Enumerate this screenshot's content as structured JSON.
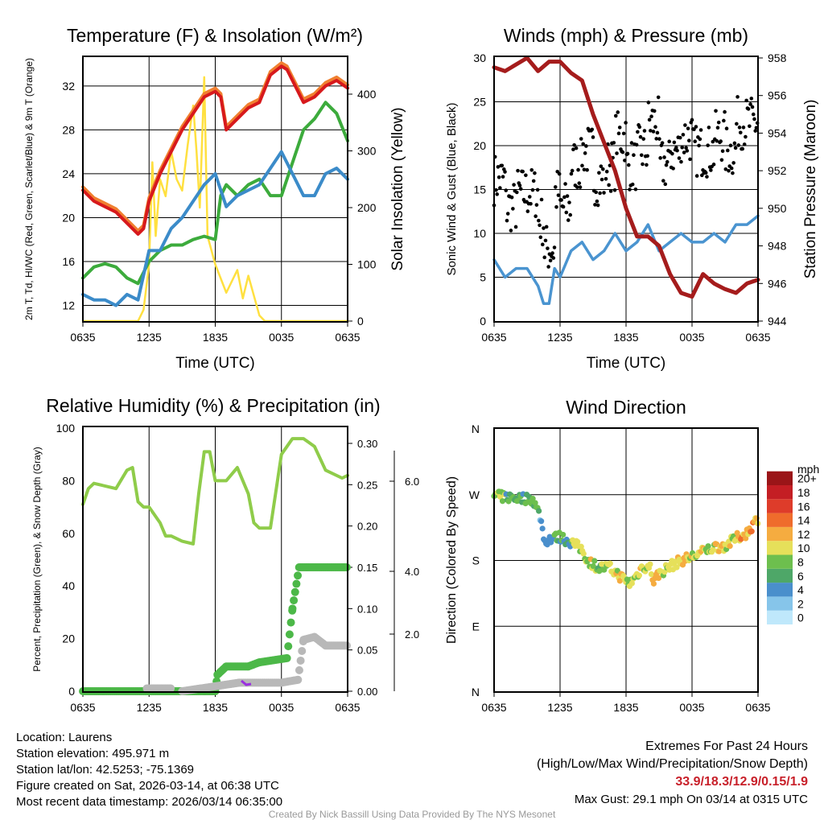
{
  "chart_data": [
    {
      "type": "line",
      "title": "Temperature (F) & Insolation (W/m²)",
      "xlabel": "Time (UTC)",
      "ylabel": "2m T, Td, HI/WC (Red, Green, Scarlet/Blue) & 9m T (Orange)",
      "ylabel2": "Solar Insolation (Yellow)",
      "xticks": [
        "0635",
        "1235",
        "1835",
        "0035",
        "0635"
      ],
      "yticks": [
        12,
        16,
        20,
        24,
        28,
        32
      ],
      "y2ticks": [
        0,
        100,
        200,
        300,
        400
      ],
      "ylim": [
        10.5,
        34.7
      ],
      "y2lim": [
        0,
        420
      ],
      "series": [
        {
          "name": "2m T",
          "color": "#d7191c",
          "points": [
            [
              0,
              22.5
            ],
            [
              1,
              21.5
            ],
            [
              2,
              21
            ],
            [
              3,
              20.5
            ],
            [
              4,
              19.5
            ],
            [
              5,
              18.5
            ],
            [
              5.5,
              19
            ],
            [
              6,
              21.5
            ],
            [
              7,
              24
            ],
            [
              8,
              26
            ],
            [
              9,
              28
            ],
            [
              10,
              29.5
            ],
            [
              11,
              31
            ],
            [
              12,
              31.5
            ],
            [
              12.5,
              31
            ],
            [
              13,
              28
            ],
            [
              14,
              29
            ],
            [
              15,
              30
            ],
            [
              16,
              30.5
            ],
            [
              17,
              33
            ],
            [
              18,
              33.8
            ],
            [
              18.5,
              33.5
            ],
            [
              19,
              32.5
            ],
            [
              20,
              30.5
            ],
            [
              21,
              31
            ],
            [
              22,
              32
            ],
            [
              23,
              32.5
            ],
            [
              24,
              31.8
            ]
          ]
        },
        {
          "name": "Td",
          "color": "#3cab3c",
          "points": [
            [
              0,
              14.5
            ],
            [
              1,
              15.5
            ],
            [
              2,
              15.8
            ],
            [
              3,
              15.5
            ],
            [
              4,
              14.5
            ],
            [
              5,
              14
            ],
            [
              6,
              16
            ],
            [
              7,
              17
            ],
            [
              8,
              17.5
            ],
            [
              9,
              17.5
            ],
            [
              10,
              18
            ],
            [
              11,
              18.3
            ],
            [
              12,
              18
            ],
            [
              12.5,
              22
            ],
            [
              13,
              23
            ],
            [
              14,
              22
            ],
            [
              15,
              23
            ],
            [
              16,
              23.5
            ],
            [
              17,
              22
            ],
            [
              18,
              22
            ],
            [
              19,
              25
            ],
            [
              20,
              28
            ],
            [
              21,
              29
            ],
            [
              22,
              30.5
            ],
            [
              23,
              29.5
            ],
            [
              24,
              27
            ]
          ]
        },
        {
          "name": "WC",
          "color": "#3b8bc9",
          "points": [
            [
              0,
              13
            ],
            [
              1,
              12.5
            ],
            [
              2,
              12.5
            ],
            [
              3,
              12
            ],
            [
              4,
              13
            ],
            [
              5,
              12.5
            ],
            [
              6,
              17
            ],
            [
              7,
              17
            ],
            [
              8,
              19
            ],
            [
              9,
              20
            ],
            [
              10,
              21.5
            ],
            [
              11,
              23
            ],
            [
              12,
              24
            ],
            [
              13,
              21
            ],
            [
              14,
              22
            ],
            [
              15,
              22.5
            ],
            [
              16,
              23
            ],
            [
              17,
              24.5
            ],
            [
              18,
              26
            ],
            [
              19,
              24
            ],
            [
              20,
              22
            ],
            [
              21,
              22
            ],
            [
              22,
              24
            ],
            [
              23,
              24.5
            ],
            [
              24,
              23.5
            ]
          ]
        },
        {
          "name": "Solar",
          "color": "#ffe040",
          "axis": 2,
          "points": [
            [
              0,
              0
            ],
            [
              5,
              0
            ],
            [
              5.5,
              20
            ],
            [
              6,
              100
            ],
            [
              6.3,
              280
            ],
            [
              6.6,
              150
            ],
            [
              7,
              250
            ],
            [
              7.5,
              220
            ],
            [
              8,
              300
            ],
            [
              8.5,
              250
            ],
            [
              9,
              230
            ],
            [
              9.5,
              310
            ],
            [
              10,
              380
            ],
            [
              10.3,
              300
            ],
            [
              10.6,
              200
            ],
            [
              11,
              430
            ],
            [
              11.3,
              150
            ],
            [
              12,
              100
            ],
            [
              13,
              50
            ],
            [
              14,
              90
            ],
            [
              14.5,
              40
            ],
            [
              15,
              80
            ],
            [
              16,
              10
            ],
            [
              16.5,
              0
            ],
            [
              24,
              0
            ]
          ]
        }
      ]
    },
    {
      "type": "line",
      "title": "Winds (mph) & Pressure (mb)",
      "xlabel": "Time (UTC)",
      "ylabel": "Sonic Wind & Gust (Blue, Black)",
      "ylabel2": "Station Pressure (Maroon)",
      "xticks": [
        "0635",
        "1235",
        "1835",
        "0035",
        "0635"
      ],
      "yticks": [
        0,
        5,
        10,
        15,
        20,
        25,
        30
      ],
      "y2ticks": [
        944,
        946,
        948,
        950,
        952,
        954,
        956,
        958
      ],
      "ylim": [
        0,
        30
      ],
      "y2lim": [
        944,
        958
      ],
      "series": [
        {
          "name": "Wind",
          "color": "#4a94d0",
          "points": [
            [
              0,
              7
            ],
            [
              1,
              5
            ],
            [
              2,
              6
            ],
            [
              3,
              6
            ],
            [
              4,
              4
            ],
            [
              4.5,
              2
            ],
            [
              5,
              2
            ],
            [
              5.5,
              6
            ],
            [
              6,
              5
            ],
            [
              7,
              8
            ],
            [
              8,
              9
            ],
            [
              9,
              7
            ],
            [
              10,
              8
            ],
            [
              11,
              10
            ],
            [
              12,
              8
            ],
            [
              13,
              9
            ],
            [
              14,
              11
            ],
            [
              15,
              8
            ],
            [
              16,
              9
            ],
            [
              17,
              10
            ],
            [
              18,
              9
            ],
            [
              19,
              9
            ],
            [
              20,
              10
            ],
            [
              21,
              9
            ],
            [
              22,
              11
            ],
            [
              23,
              11
            ],
            [
              24,
              12
            ]
          ]
        },
        {
          "name": "Pressure",
          "color": "#a51c1c",
          "axis": 2,
          "points": [
            [
              0,
              957.5
            ],
            [
              1,
              957.3
            ],
            [
              3,
              958
            ],
            [
              4,
              957.3
            ],
            [
              5,
              957.8
            ],
            [
              6,
              957.8
            ],
            [
              7,
              957.2
            ],
            [
              8,
              956.8
            ],
            [
              9,
              955
            ],
            [
              10,
              953.5
            ],
            [
              11,
              952
            ],
            [
              12,
              950
            ],
            [
              13,
              948.5
            ],
            [
              14,
              948.5
            ],
            [
              15,
              948
            ],
            [
              16,
              946.5
            ],
            [
              17,
              945.5
            ],
            [
              18,
              945.3
            ],
            [
              19,
              946.5
            ],
            [
              20,
              946
            ],
            [
              21,
              945.7
            ],
            [
              22,
              945.5
            ],
            [
              23,
              946
            ],
            [
              24,
              946.2
            ]
          ]
        },
        {
          "name": "Gust",
          "color": "#000000",
          "type": "scatter",
          "max": 29.1
        }
      ]
    },
    {
      "type": "line",
      "title": "Relative Humidity (%) & Precipitation (in)",
      "ylabel": "Percent, Precipitation (Green), & Snow Depth (Gray)",
      "xticks": [
        "0635",
        "1235",
        "1835",
        "0035",
        "0635"
      ],
      "yticks": [
        0,
        20,
        40,
        60,
        80,
        100
      ],
      "y2ticks": [
        "0.00",
        "0.05",
        "0.10",
        "0.15",
        "0.20",
        "0.25",
        "0.30"
      ],
      "y3ticks": [
        "2.0",
        "4.0",
        "6.0"
      ],
      "ylim": [
        0,
        100
      ],
      "y2lim": [
        0,
        0.3
      ],
      "series": [
        {
          "name": "RH",
          "color": "#8fcc4a",
          "points": [
            [
              0,
              71
            ],
            [
              0.5,
              77
            ],
            [
              1,
              79
            ],
            [
              2,
              78
            ],
            [
              3,
              77
            ],
            [
              4,
              84
            ],
            [
              4.5,
              85
            ],
            [
              5,
              72
            ],
            [
              5.5,
              70
            ],
            [
              6,
              70
            ],
            [
              7,
              64
            ],
            [
              7.5,
              59
            ],
            [
              8,
              59
            ],
            [
              9,
              57
            ],
            [
              10,
              56
            ],
            [
              10.5,
              75
            ],
            [
              11,
              91
            ],
            [
              11.5,
              91
            ],
            [
              12,
              80
            ],
            [
              13,
              80
            ],
            [
              14,
              85
            ],
            [
              15,
              75
            ],
            [
              15.5,
              64
            ],
            [
              16,
              62
            ],
            [
              17,
              62
            ],
            [
              18,
              90
            ],
            [
              19,
              96
            ],
            [
              20,
              96
            ],
            [
              21,
              93
            ],
            [
              22,
              84
            ],
            [
              23.5,
              81
            ],
            [
              24,
              82
            ]
          ]
        },
        {
          "name": "Precip",
          "color": "#4cb848",
          "axis": 2,
          "points": [
            [
              0,
              0
            ],
            [
              12,
              0
            ],
            [
              12.2,
              0.02
            ],
            [
              13,
              0.03
            ],
            [
              15,
              0.03
            ],
            [
              16,
              0.035
            ],
            [
              18.5,
              0.04
            ],
            [
              19,
              0.1
            ],
            [
              19.6,
              0.15
            ],
            [
              24,
              0.15
            ]
          ]
        },
        {
          "name": "Snow",
          "color": "#b8b8b8",
          "points": [
            [
              5.8,
              0.1
            ],
            [
              8,
              0.1
            ],
            [
              9,
              0
            ],
            [
              14.2,
              0.3
            ],
            [
              15,
              0.3
            ],
            [
              18,
              0.3
            ],
            [
              19.5,
              0.4
            ],
            [
              20,
              1.8
            ],
            [
              21,
              1.9
            ],
            [
              22,
              1.6
            ],
            [
              24,
              1.6
            ]
          ]
        }
      ]
    },
    {
      "type": "scatter",
      "title": "Wind Direction",
      "ylabel": "Direction (Colored By Speed)",
      "xticks": [
        "0635",
        "1235",
        "1835",
        "0035",
        "0635"
      ],
      "yticks": [
        "N",
        "E",
        "S",
        "W",
        "N"
      ],
      "legend_title": "mph",
      "legend": [
        "0",
        "2",
        "4",
        "6",
        "8",
        "10",
        "12",
        "14",
        "16",
        "18",
        "20+"
      ],
      "colors": [
        "#bfe8fb",
        "#86c5ea",
        "#4a8fcc",
        "#4ea768",
        "#6dbf4e",
        "#e6e05a",
        "#f5ac40",
        "#ef6c2c",
        "#de3c2a",
        "#c41e24",
        "#9a1518"
      ]
    }
  ],
  "info": {
    "location": "Location: Laurens",
    "elevation": "Station elevation: 495.971 m",
    "latlon": "Station lat/lon: 42.5253; -75.1369",
    "created": "Figure created on Sat, 2026-03-14, at 06:38 UTC",
    "recent": "Most recent data timestamp: 2026/03/14 06:35:00"
  },
  "extremes": {
    "title": "Extremes For Past 24 Hours",
    "subtitle": "(High/Low/Max Wind/Precipitation/Snow Depth)",
    "values": "33.9/18.3/12.9/0.15/1.9",
    "gust": "Max Gust: 29.1 mph On 03/14 at 0315 UTC"
  },
  "credit": "Created By Nick Bassill Using Data Provided By The NYS Mesonet"
}
